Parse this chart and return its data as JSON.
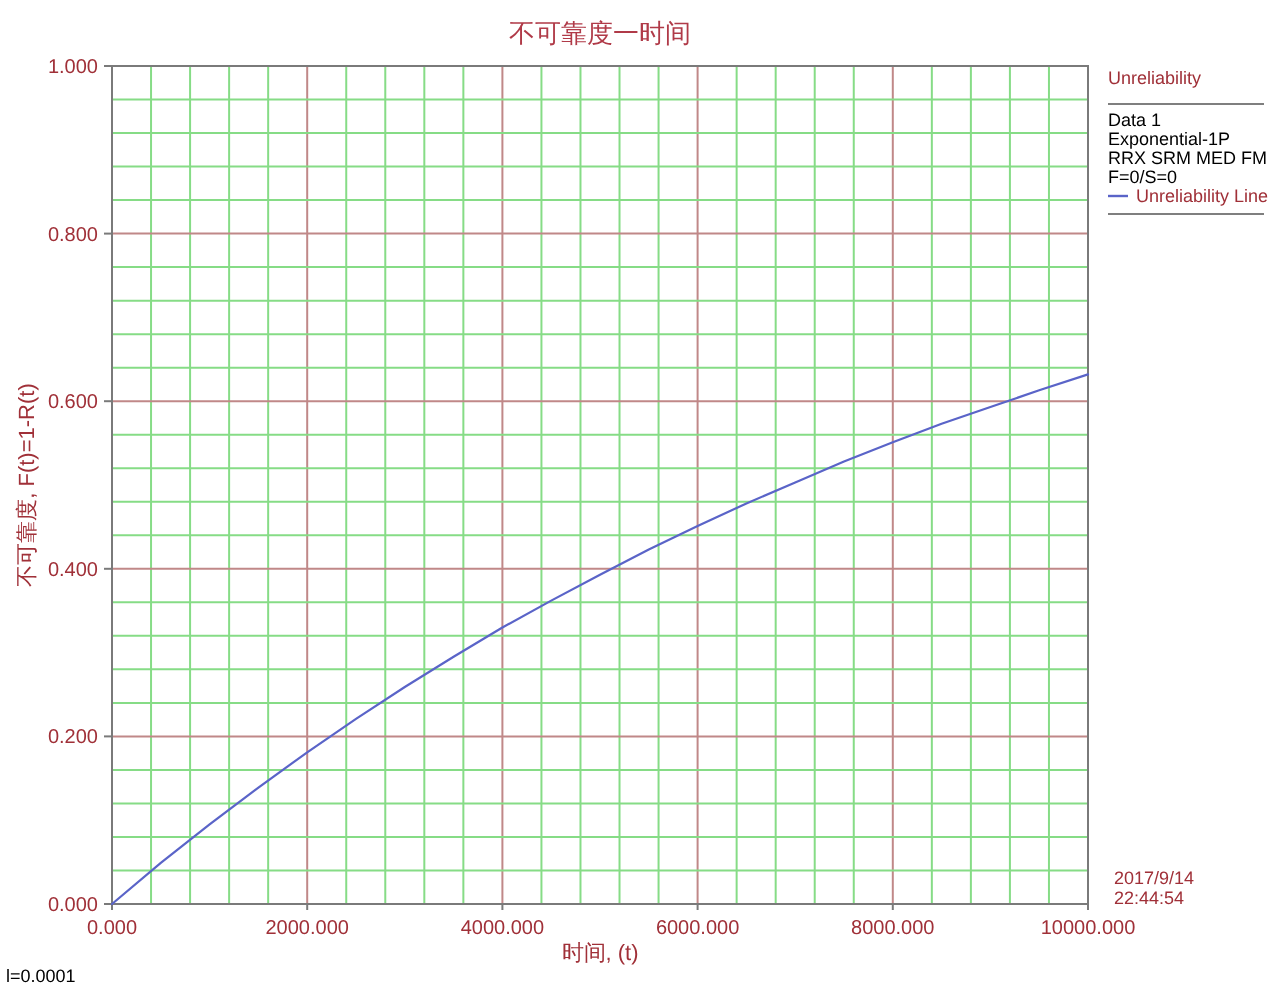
{
  "chart_data": {
    "type": "line",
    "title": "不可靠度一时间",
    "xlabel": "时间, (t)",
    "ylabel": "不可靠度, F(t)=1-R(t)",
    "legend_title": "Unreliability",
    "x": [
      0,
      500,
      1000,
      1500,
      2000,
      2500,
      3000,
      3500,
      4000,
      4500,
      5000,
      5500,
      6000,
      6500,
      7000,
      7500,
      8000,
      8500,
      9000,
      9500,
      10000
    ],
    "series": [
      {
        "name": "Unreliability Line",
        "color": "#5a64c8",
        "values": [
          0,
          0.049,
          0.095,
          0.139,
          0.181,
          0.221,
          0.259,
          0.295,
          0.33,
          0.362,
          0.393,
          0.423,
          0.451,
          0.478,
          0.503,
          0.528,
          0.551,
          0.573,
          0.593,
          0.613,
          0.632
        ]
      }
    ],
    "xlim": [
      0,
      10000
    ],
    "ylim": [
      0,
      1
    ],
    "xticks": [
      {
        "value": 0,
        "label": "0.000"
      },
      {
        "value": 400,
        "label": null
      },
      {
        "value": 800,
        "label": null
      },
      {
        "value": 1200,
        "label": null
      },
      {
        "value": 1600,
        "label": null
      },
      {
        "value": 2000,
        "label": "2000.000"
      },
      {
        "value": 2400,
        "label": null
      },
      {
        "value": 2800,
        "label": null
      },
      {
        "value": 3200,
        "label": null
      },
      {
        "value": 3600,
        "label": null
      },
      {
        "value": 4000,
        "label": "4000.000"
      },
      {
        "value": 4400,
        "label": null
      },
      {
        "value": 4800,
        "label": null
      },
      {
        "value": 5200,
        "label": null
      },
      {
        "value": 5600,
        "label": null
      },
      {
        "value": 6000,
        "label": "6000.000"
      },
      {
        "value": 6400,
        "label": null
      },
      {
        "value": 6800,
        "label": null
      },
      {
        "value": 7200,
        "label": null
      },
      {
        "value": 7600,
        "label": null
      },
      {
        "value": 8000,
        "label": "8000.000"
      },
      {
        "value": 8400,
        "label": null
      },
      {
        "value": 8800,
        "label": null
      },
      {
        "value": 9200,
        "label": null
      },
      {
        "value": 9600,
        "label": null
      },
      {
        "value": 10000,
        "label": "10000.000"
      }
    ],
    "yticks": [
      {
        "value": 0,
        "label": "0.000"
      },
      {
        "value": 0.04,
        "label": null
      },
      {
        "value": 0.08,
        "label": null
      },
      {
        "value": 0.12,
        "label": null
      },
      {
        "value": 0.16,
        "label": null
      },
      {
        "value": 0.2,
        "label": "0.200"
      },
      {
        "value": 0.24,
        "label": null
      },
      {
        "value": 0.28,
        "label": null
      },
      {
        "value": 0.32,
        "label": null
      },
      {
        "value": 0.36,
        "label": null
      },
      {
        "value": 0.4,
        "label": "0.400"
      },
      {
        "value": 0.44,
        "label": null
      },
      {
        "value": 0.48,
        "label": null
      },
      {
        "value": 0.52,
        "label": null
      },
      {
        "value": 0.56,
        "label": null
      },
      {
        "value": 0.6,
        "label": "0.600"
      },
      {
        "value": 0.64,
        "label": null
      },
      {
        "value": 0.68,
        "label": null
      },
      {
        "value": 0.72,
        "label": null
      },
      {
        "value": 0.76,
        "label": null
      },
      {
        "value": 0.8,
        "label": "0.800"
      },
      {
        "value": 0.84,
        "label": null
      },
      {
        "value": 0.88,
        "label": null
      },
      {
        "value": 0.92,
        "label": null
      },
      {
        "value": 0.96,
        "label": null
      },
      {
        "value": 1,
        "label": "1.000"
      }
    ],
    "grid": true,
    "legend": "right",
    "annotations": [
      "Data 1",
      "Exponential-1P",
      "RRX SRM MED FM",
      "F=0/S=0",
      "2017/9/14",
      "22:44:54",
      "l=0.0001"
    ]
  }
}
